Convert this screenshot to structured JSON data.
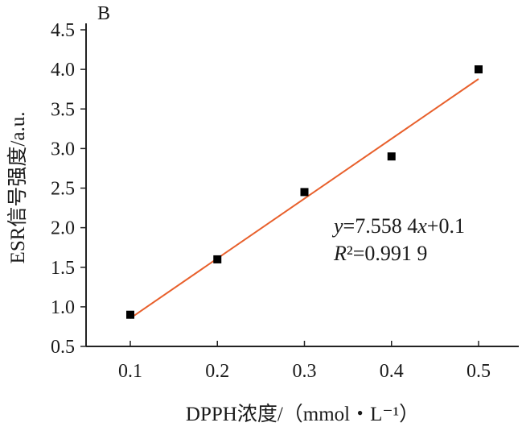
{
  "panel_label": "B",
  "chart_data": {
    "type": "scatter",
    "title": "",
    "xlabel": "DPPH浓度/（mmol・L⁻¹）",
    "ylabel": "ESR信号强度/a.u.",
    "xlim": [
      0.05,
      0.55
    ],
    "ylim": [
      0.5,
      4.5
    ],
    "x_ticks": [
      "0.1",
      "0.2",
      "0.3",
      "0.4",
      "0.5"
    ],
    "y_ticks": [
      "0.5",
      "1.0",
      "1.5",
      "2.0",
      "2.5",
      "3.0",
      "3.5",
      "4.0",
      "4.5"
    ],
    "grid": false,
    "series": [
      {
        "name": "ESR signal",
        "x": [
          0.1,
          0.2,
          0.3,
          0.4,
          0.5
        ],
        "y": [
          0.9,
          1.6,
          2.45,
          2.9,
          4.0
        ],
        "color": "#000000"
      }
    ],
    "fit": {
      "slope": 7.5584,
      "intercept": 0.1,
      "x_range": [
        0.1,
        0.5
      ],
      "color": "#e8602c"
    },
    "annotations": {
      "equation": "y=7.558 4x+0.1",
      "r2": "R²=0.991 9"
    }
  }
}
